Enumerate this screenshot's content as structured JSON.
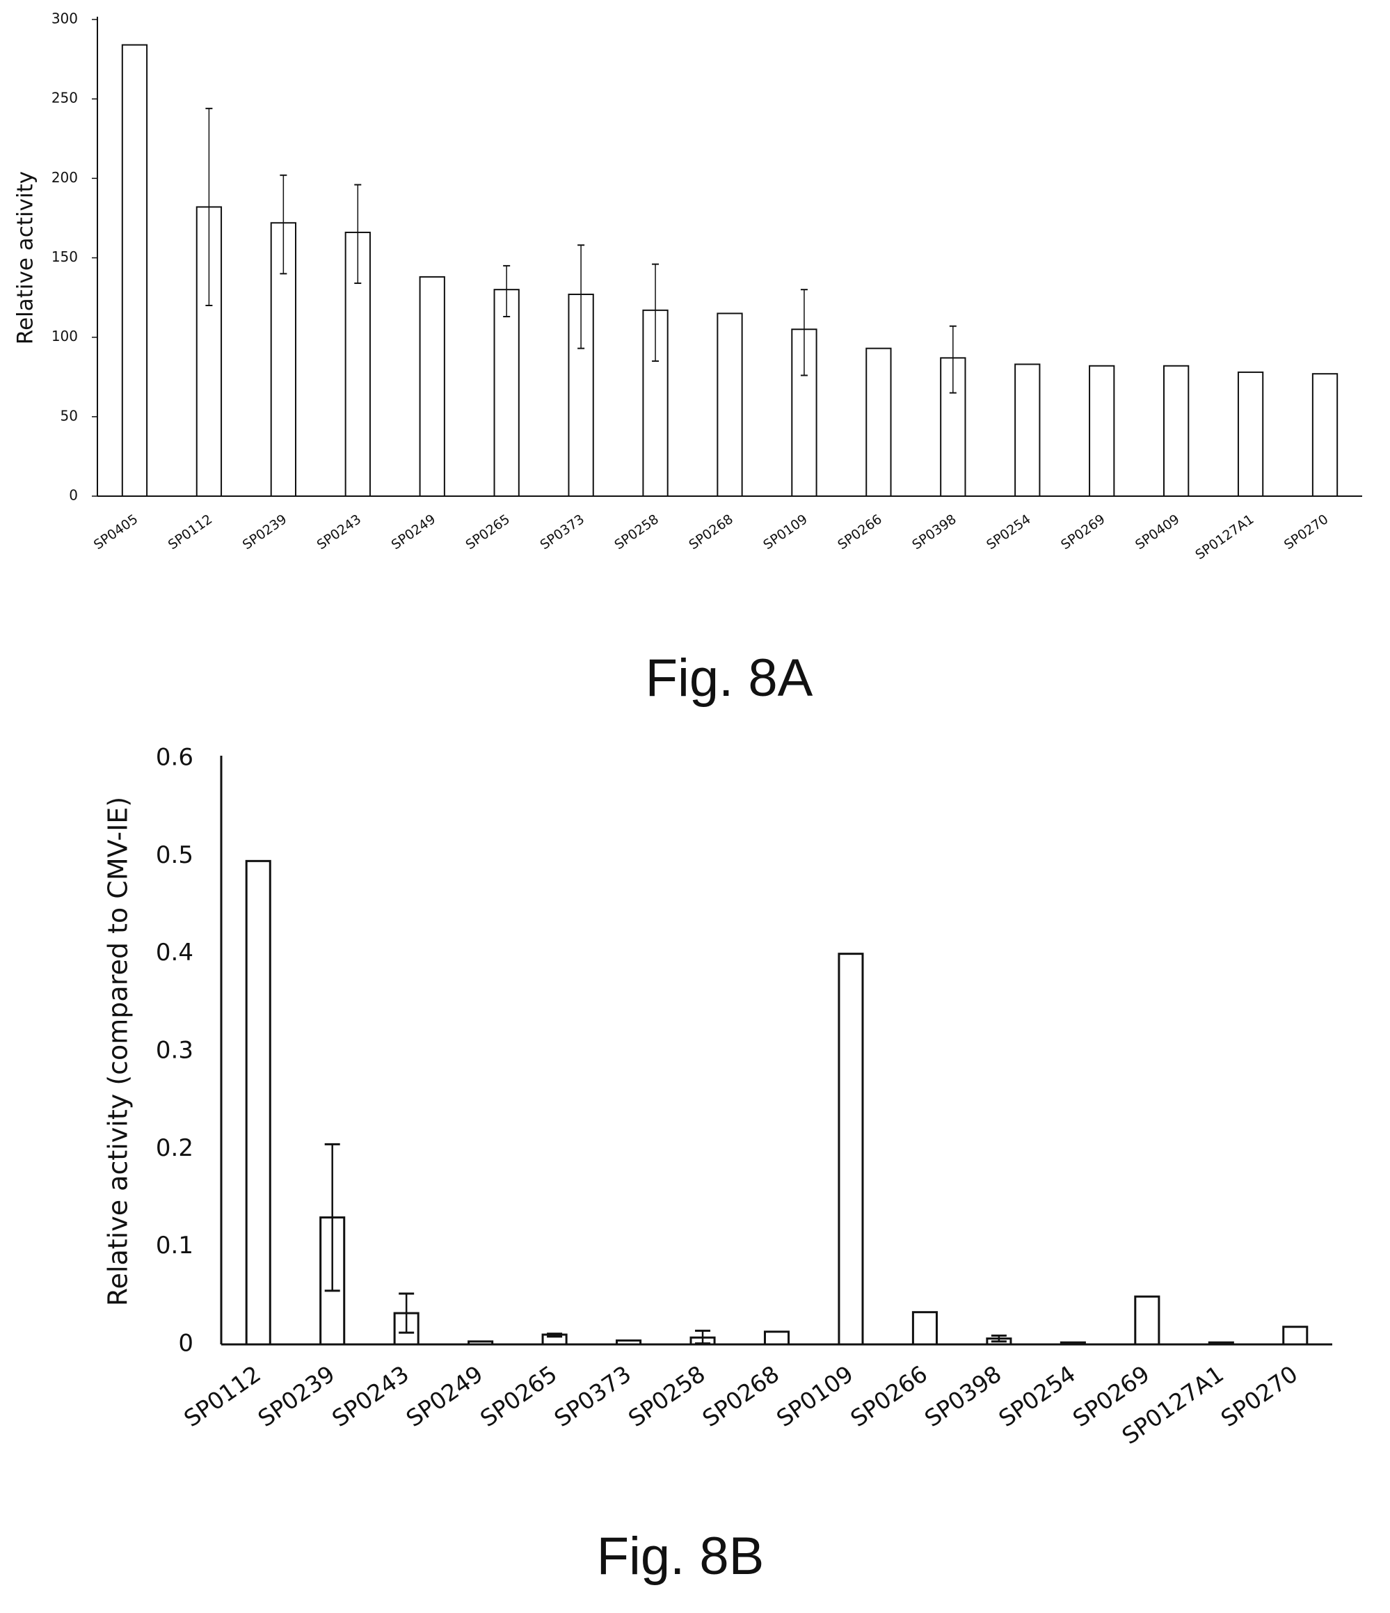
{
  "chart_data": [
    {
      "type": "bar",
      "caption": "Fig. 8A",
      "ylabel": "Relative activity",
      "xlabel": "",
      "ylim": [
        0,
        300
      ],
      "yticks": [
        "0",
        "50",
        "100",
        "150",
        "200",
        "250",
        "300"
      ],
      "categories": [
        "SP0405",
        "SP0112",
        "SP0239",
        "SP0243",
        "SP0249",
        "SP0265",
        "SP0373",
        "SP0258",
        "SP0268",
        "SP0109",
        "SP0266",
        "SP0398",
        "SP0254",
        "SP0269",
        "SP0409",
        "SP0127A1",
        "SP0270"
      ],
      "values": [
        284,
        182,
        172,
        166,
        138,
        130,
        127,
        117,
        115,
        105,
        93,
        87,
        83,
        82,
        82,
        78,
        77
      ],
      "error_low": [
        null,
        120,
        140,
        134,
        null,
        113,
        93,
        85,
        null,
        76,
        null,
        65,
        null,
        null,
        null,
        null,
        null
      ],
      "error_high": [
        null,
        244,
        202,
        196,
        null,
        145,
        158,
        146,
        null,
        130,
        null,
        107,
        null,
        null,
        null,
        null,
        null
      ],
      "grid": false,
      "legend": false
    },
    {
      "type": "bar",
      "caption": "Fig. 8B",
      "ylabel": "Relative activity (compared to CMV-IE)",
      "xlabel": "",
      "ylim": [
        0,
        0.6
      ],
      "yticks": [
        "0",
        "0.1",
        "0.2",
        "0.3",
        "0.4",
        "0.5",
        "0.6"
      ],
      "categories": [
        "SP0112",
        "SP0239",
        "SP0243",
        "SP0249",
        "SP0265",
        "SP0373",
        "SP0258",
        "SP0268",
        "SP0109",
        "SP0266",
        "SP0398",
        "SP0254",
        "SP0269",
        "SP0127A1",
        "SP0270"
      ],
      "values": [
        0.495,
        0.13,
        0.032,
        0.003,
        0.01,
        0.004,
        0.007,
        0.013,
        0.4,
        0.033,
        0.006,
        0.002,
        0.049,
        0.002,
        0.018
      ],
      "error_low": [
        null,
        0.055,
        0.012,
        null,
        0.008,
        null,
        0.001,
        null,
        null,
        null,
        0.003,
        null,
        null,
        null,
        null
      ],
      "error_high": [
        null,
        0.205,
        0.052,
        null,
        0.011,
        null,
        0.014,
        null,
        null,
        null,
        0.009,
        null,
        null,
        null,
        null
      ],
      "grid": false,
      "legend": false
    }
  ]
}
